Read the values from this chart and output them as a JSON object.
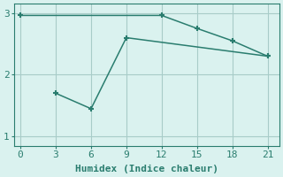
{
  "line1_x": [
    0,
    12,
    15,
    18,
    21
  ],
  "line1_y": [
    2.96,
    2.96,
    2.75,
    2.55,
    2.3
  ],
  "line2_x": [
    3,
    6,
    9,
    21
  ],
  "line2_y": [
    1.7,
    1.45,
    2.6,
    2.3
  ],
  "line_color": "#2a7d6f",
  "marker": "+",
  "marker_size": 5,
  "marker_linewidth": 1.5,
  "linewidth": 1.1,
  "bg_color": "#daf2ef",
  "grid_color": "#a8ccc8",
  "xlabel": "Humidex (Indice chaleur)",
  "xlabel_fontsize": 8,
  "xlim": [
    -0.5,
    22
  ],
  "ylim": [
    0.85,
    3.15
  ],
  "xticks": [
    0,
    3,
    6,
    9,
    12,
    15,
    18,
    21
  ],
  "yticks": [
    1,
    2,
    3
  ],
  "tick_fontsize": 8,
  "tick_color": "#2a7d6f",
  "spine_color": "#2a7d6f"
}
